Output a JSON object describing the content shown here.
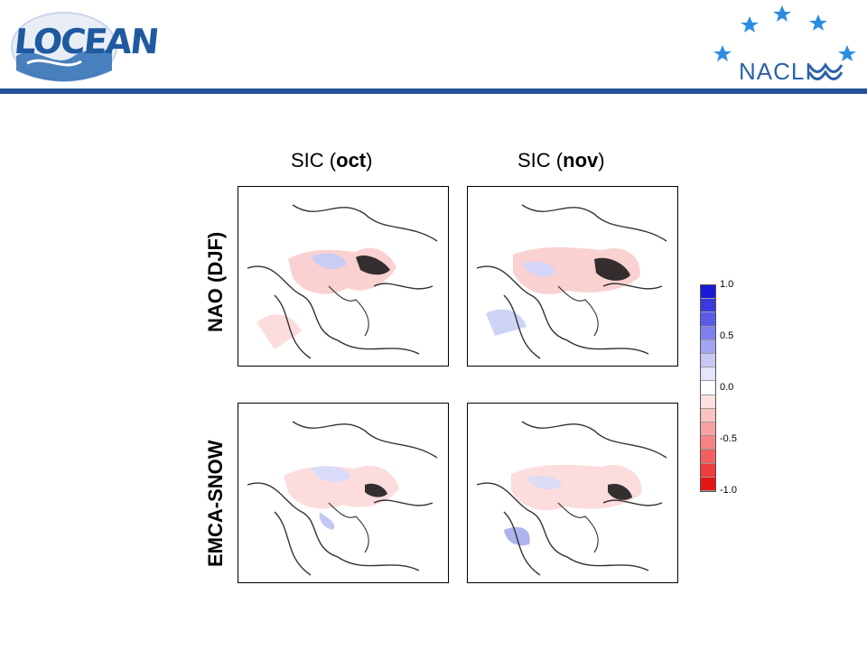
{
  "header": {
    "left_logo": "LOCEAN",
    "right_logo": "NACLI",
    "bar_color": "#24539c"
  },
  "columns": [
    {
      "prefix": "SIC (",
      "bold": "oct",
      "suffix": ")"
    },
    {
      "prefix": "SIC (",
      "bold": "nov",
      "suffix": ")"
    }
  ],
  "rows": [
    "NAO (DJF)",
    "EMCA-SNOW"
  ],
  "colorbar": {
    "ticks": [
      "1.0",
      "0.5",
      "0.0",
      "-0.5",
      "-1.0"
    ],
    "colors": [
      "#1a1ad6",
      "#3a3ae0",
      "#5b5be8",
      "#7f7fee",
      "#a4a4f2",
      "#c8c8f7",
      "#e4e4fb",
      "#ffffff",
      "#fde0e0",
      "#fbc2c2",
      "#f8a3a3",
      "#f58383",
      "#f25f5f",
      "#ee3b3b",
      "#e61515"
    ]
  }
}
